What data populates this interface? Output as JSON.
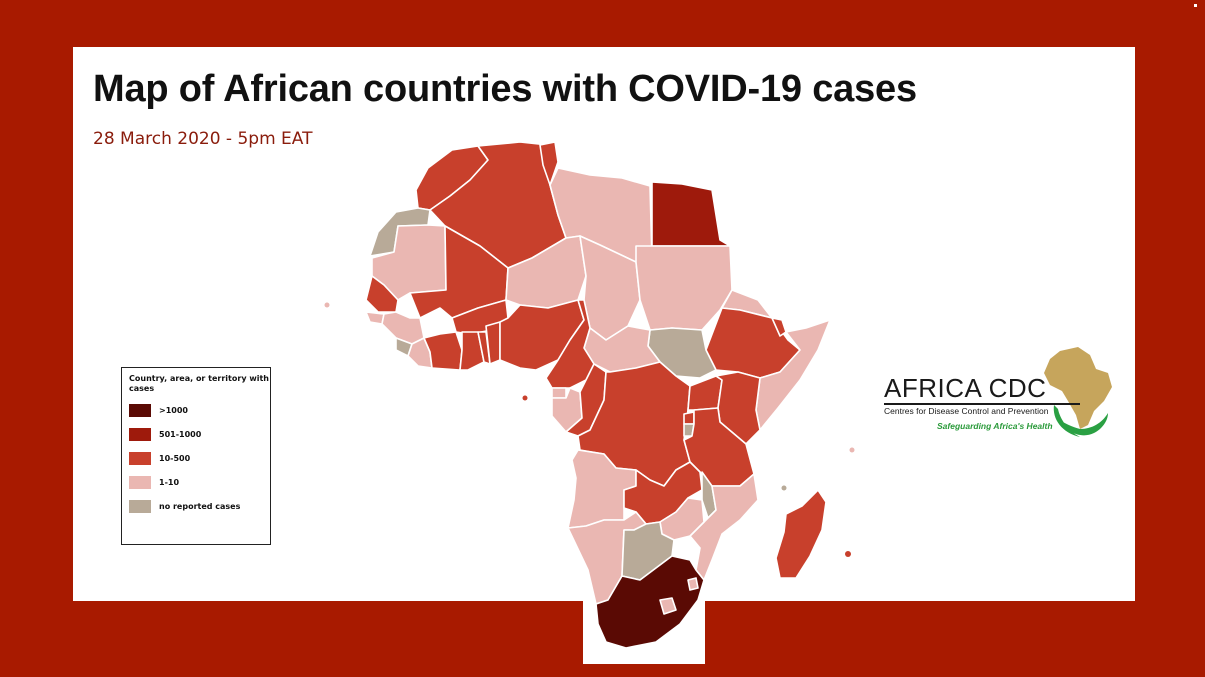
{
  "header": {
    "title": "Map of African countries with COVID-19 cases",
    "subtitle": "28 March 2020 - 5pm EAT"
  },
  "legend": {
    "title": "Country, area, or territory with cases",
    "items": [
      {
        "label": ">1000",
        "color": "#5a0a04"
      },
      {
        "label": "501-1000",
        "color": "#9e1a0c"
      },
      {
        "label": "10-500",
        "color": "#c8402c"
      },
      {
        "label": "1-10",
        "color": "#eab7b2"
      },
      {
        "label": "no reported cases",
        "color": "#b8aa98"
      }
    ]
  },
  "logo": {
    "name": "AFRICA CDC",
    "subline": "Centres for Disease Control and Prevention",
    "tagline": "Safeguarding Africa's Health"
  },
  "colors": {
    "frame": "#a81a00",
    "over_1000": "#5a0a04",
    "range_501_1000": "#9e1a0c",
    "range_10_500": "#c8402c",
    "range_1_10": "#eab7b2",
    "no_cases": "#b8aa98",
    "border": "#ffffff"
  }
}
